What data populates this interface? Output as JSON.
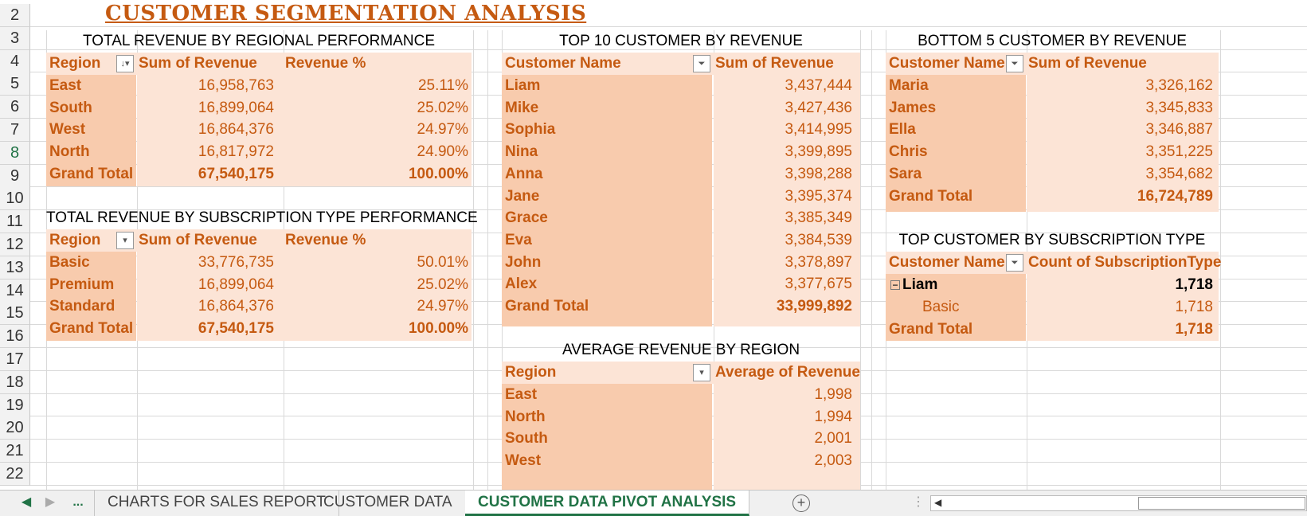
{
  "sheet_title": "CUSTOMER SEGMENTATION ANALYSIS",
  "row_numbers": [
    "2",
    "3",
    "4",
    "5",
    "6",
    "7",
    "8",
    "9",
    "10",
    "11",
    "12",
    "13",
    "14",
    "15",
    "16",
    "17",
    "18",
    "19",
    "20",
    "21",
    "22"
  ],
  "regional": {
    "title": "TOTAL REVENUE BY REGIONAL PERFORMANCE",
    "headers": [
      "Region",
      "Sum of Revenue",
      "Revenue %"
    ],
    "rows": [
      [
        "East",
        "16,958,763",
        "25.11%"
      ],
      [
        "South",
        "16,899,064",
        "25.02%"
      ],
      [
        "West",
        "16,864,376",
        "24.97%"
      ],
      [
        "North",
        "16,817,972",
        "24.90%"
      ]
    ],
    "total": [
      "Grand Total",
      "67,540,175",
      "100.00%"
    ]
  },
  "subscription": {
    "title": "TOTAL REVENUE BY SUBSCRIPTION TYPE PERFORMANCE",
    "headers": [
      "Region",
      "Sum of Revenue",
      "Revenue %"
    ],
    "rows": [
      [
        "Basic",
        "33,776,735",
        "50.01%"
      ],
      [
        "Premium",
        "16,899,064",
        "25.02%"
      ],
      [
        "Standard",
        "16,864,376",
        "24.97%"
      ]
    ],
    "total": [
      "Grand Total",
      "67,540,175",
      "100.00%"
    ]
  },
  "top10": {
    "title": "TOP 10 CUSTOMER BY REVENUE",
    "headers": [
      "Customer Name",
      "Sum of Revenue"
    ],
    "rows": [
      [
        "Liam",
        "3,437,444"
      ],
      [
        "Mike",
        "3,427,436"
      ],
      [
        "Sophia",
        "3,414,995"
      ],
      [
        "Nina",
        "3,399,895"
      ],
      [
        "Anna",
        "3,398,288"
      ],
      [
        "Jane",
        "3,395,374"
      ],
      [
        "Grace",
        "3,385,349"
      ],
      [
        "Eva",
        "3,384,539"
      ],
      [
        "John",
        "3,378,897"
      ],
      [
        "Alex",
        "3,377,675"
      ]
    ],
    "total": [
      "Grand Total",
      "33,999,892"
    ]
  },
  "avg_region": {
    "title": "AVERAGE REVENUE BY REGION",
    "headers": [
      "Region",
      "Average of Revenue"
    ],
    "rows": [
      [
        "East",
        "1,998"
      ],
      [
        "North",
        "1,994"
      ],
      [
        "South",
        "2,001"
      ],
      [
        "West",
        "2,003"
      ]
    ]
  },
  "bottom5": {
    "title": "BOTTOM 5 CUSTOMER BY REVENUE",
    "headers": [
      "Customer Name",
      "Sum of Revenue"
    ],
    "rows": [
      [
        "Maria",
        "3,326,162"
      ],
      [
        "James",
        "3,345,833"
      ],
      [
        "Ella",
        "3,346,887"
      ],
      [
        "Chris",
        "3,351,225"
      ],
      [
        "Sara",
        "3,354,682"
      ]
    ],
    "total": [
      "Grand Total",
      "16,724,789"
    ]
  },
  "top_sub": {
    "title": "TOP CUSTOMER BY SUBSCRIPTION TYPE",
    "headers": [
      "Customer Name",
      "Count of SubscriptionType"
    ],
    "parent": [
      "Liam",
      "1,718"
    ],
    "child": [
      "Basic",
      "1,718"
    ],
    "total": [
      "Grand Total",
      "1,718"
    ]
  },
  "tabs": {
    "more": "...",
    "sheets": [
      "CHARTS FOR SALES REPORT",
      "CUSTOMER DATA",
      "CUSTOMER DATA PIVOT ANALYSIS"
    ]
  },
  "icons": {
    "sort_desc": "sort-descending-icon",
    "filter": "filter-icon",
    "dropdown": "dropdown-icon"
  }
}
